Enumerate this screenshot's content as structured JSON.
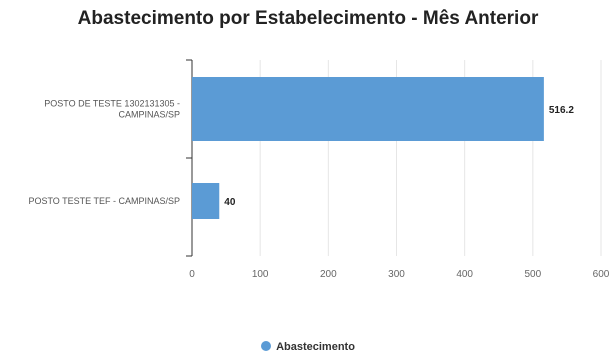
{
  "chart_data": {
    "type": "bar",
    "orientation": "horizontal",
    "title": "Abastecimento por Estabelecimento - Mês Anterior",
    "categories": [
      "POSTO DE TESTE 1302131305 - CAMPINAS/SP",
      "POSTO TESTE TEF - CAMPINAS/SP"
    ],
    "category_lines": [
      [
        "POSTO DE TESTE 1302131305 -",
        "CAMPINAS/SP"
      ],
      [
        "POSTO TESTE TEF - CAMPINAS/SP"
      ]
    ],
    "series": [
      {
        "name": "Abastecimento",
        "values": [
          516.2,
          40
        ],
        "labels": [
          "516.2",
          "40"
        ]
      }
    ],
    "xlim": [
      0,
      600
    ],
    "ticks": [
      "0",
      "100",
      "200",
      "300",
      "400",
      "500",
      "600"
    ],
    "tick_values": [
      0,
      100,
      200,
      300,
      400,
      500,
      600
    ],
    "grid": true,
    "legend_position": "bottom-center",
    "colors": {
      "bar": "#5b9bd5",
      "grid": "#e6e6e6",
      "axis": "#333333"
    }
  }
}
